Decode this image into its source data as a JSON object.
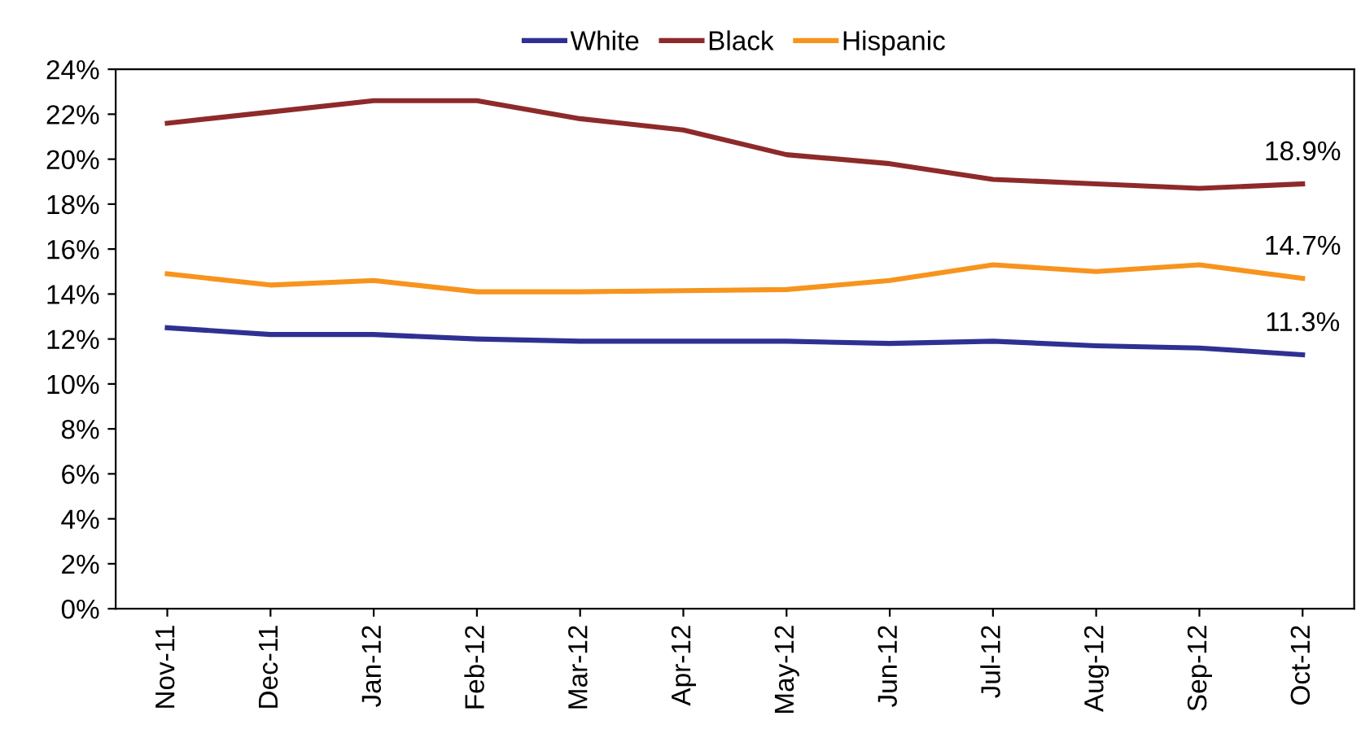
{
  "chart_data": {
    "type": "line",
    "categories": [
      "Nov-11",
      "Dec-11",
      "Jan-12",
      "Feb-12",
      "Mar-12",
      "Apr-12",
      "May-12",
      "Jun-12",
      "Jul-12",
      "Aug-12",
      "Sep-12",
      "Oct-12"
    ],
    "series": [
      {
        "name": "White",
        "color": "#2e3192",
        "values": [
          12.5,
          12.2,
          12.2,
          12.0,
          11.9,
          11.9,
          11.9,
          11.8,
          11.9,
          11.7,
          11.6,
          11.3
        ]
      },
      {
        "name": "Black",
        "color": "#8e2a2a",
        "values": [
          21.6,
          22.1,
          22.6,
          22.6,
          21.8,
          21.3,
          20.2,
          19.8,
          19.1,
          18.9,
          18.7,
          18.9
        ]
      },
      {
        "name": "Hispanic",
        "color": "#f7941d",
        "values": [
          14.9,
          14.4,
          14.6,
          14.1,
          14.1,
          14.15,
          14.2,
          14.6,
          15.3,
          15.0,
          15.3,
          14.7
        ]
      }
    ],
    "ylim": [
      0,
      24
    ],
    "yticks": [
      {
        "value": 0,
        "label": "0%"
      },
      {
        "value": 2,
        "label": "2%"
      },
      {
        "value": 4,
        "label": "4%"
      },
      {
        "value": 6,
        "label": "6%"
      },
      {
        "value": 8,
        "label": "8%"
      },
      {
        "value": 10,
        "label": "10%"
      },
      {
        "value": 12,
        "label": "12%"
      },
      {
        "value": 14,
        "label": "14%"
      },
      {
        "value": 16,
        "label": "16%"
      },
      {
        "value": 18,
        "label": "18%"
      },
      {
        "value": 20,
        "label": "20%"
      },
      {
        "value": 22,
        "label": "22%"
      },
      {
        "value": 24,
        "label": "24%"
      }
    ],
    "annotations": [
      {
        "text": "18.9%",
        "x": "Oct-12",
        "y": 18.9
      },
      {
        "text": "14.7%",
        "x": "Oct-12",
        "y": 14.7
      },
      {
        "text": "11.3%",
        "x": "Oct-12",
        "y": 11.3
      }
    ],
    "grid": false,
    "legend": "top",
    "marker": "none",
    "line_style": "solid"
  }
}
